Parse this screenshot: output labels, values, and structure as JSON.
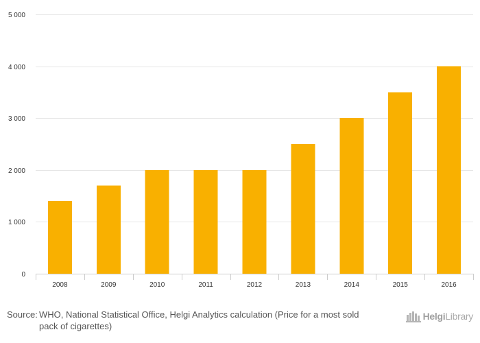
{
  "chart_data": {
    "type": "bar",
    "categories": [
      "2008",
      "2009",
      "2010",
      "2011",
      "2012",
      "2013",
      "2014",
      "2015",
      "2016"
    ],
    "values": [
      1400,
      1700,
      2000,
      2000,
      2000,
      2500,
      3000,
      3500,
      4000
    ],
    "ylim": [
      0,
      5000
    ],
    "yticks": [
      0,
      1000,
      2000,
      3000,
      4000,
      5000
    ],
    "ytick_labels": [
      "0",
      "1 000",
      "2 000",
      "3 000",
      "4 000",
      "5 000"
    ],
    "grid": true,
    "bar_color": "#f9b000",
    "title": "",
    "xlabel": "",
    "ylabel": ""
  },
  "footer": {
    "source_label": "Source:",
    "source_text": "WHO, National Statistical Office, Helgi Analytics calculation (Price for a most sold pack of cigarettes)",
    "logo_text_bold": "Helgi",
    "logo_text": "Library"
  }
}
